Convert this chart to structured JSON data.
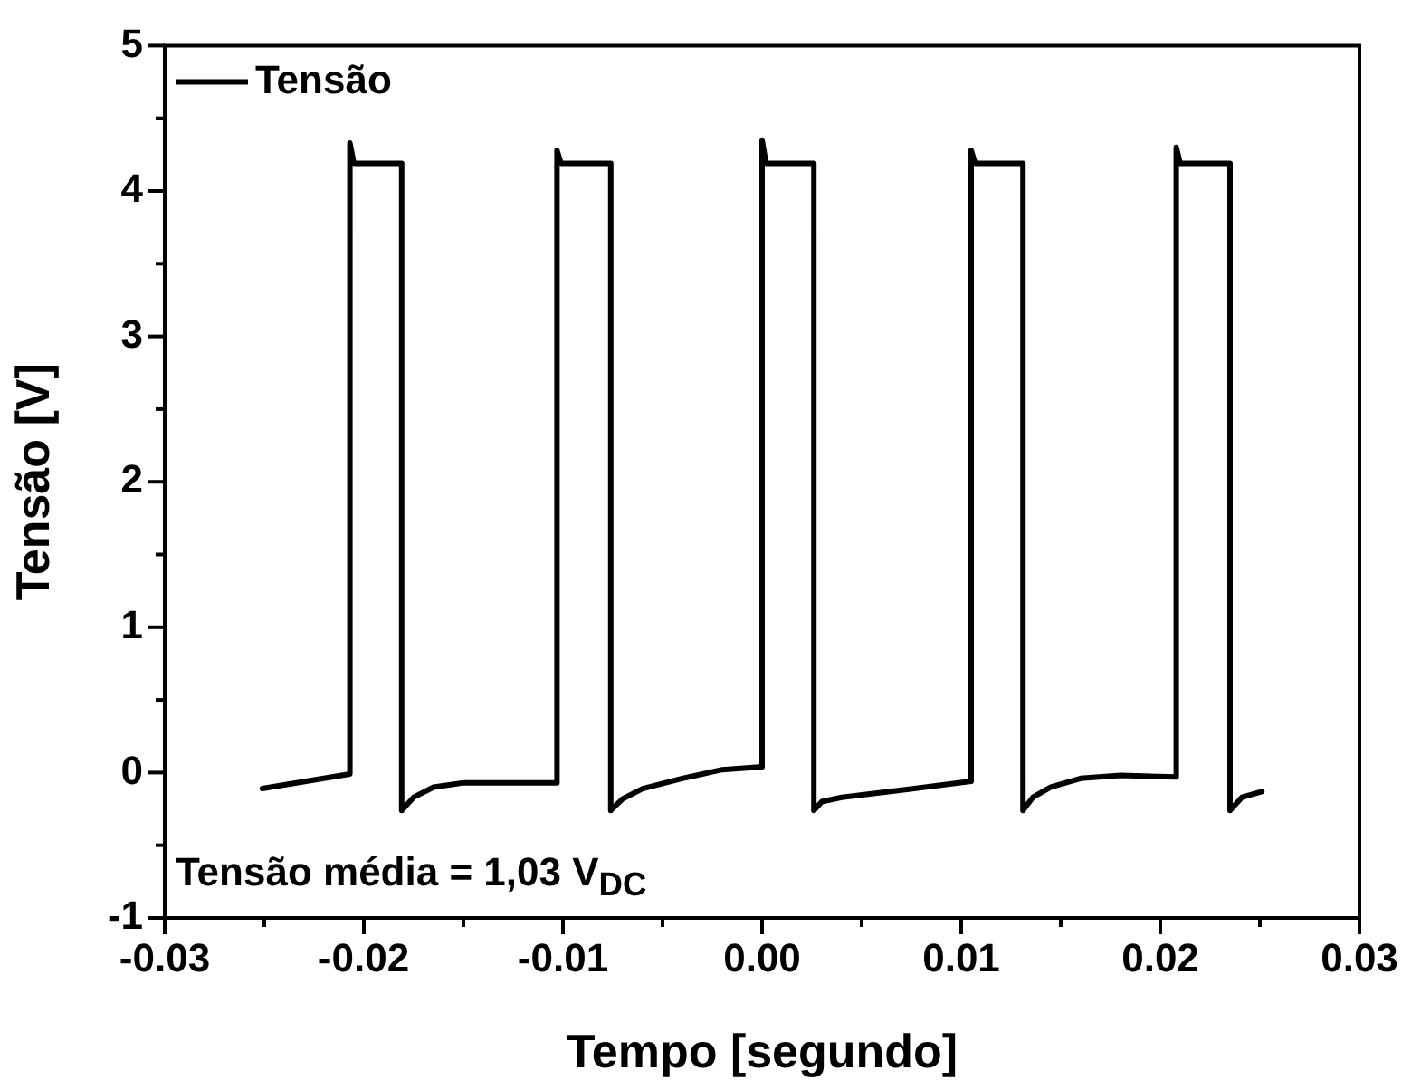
{
  "chart_data": {
    "type": "line",
    "xlabel": "Tempo [segundo]",
    "ylabel": "Tensão [V]",
    "xlim": [
      -0.03,
      0.03
    ],
    "xticks": [
      -0.03,
      {
        "value": -0.025,
        "label": null
      },
      -0.02,
      {
        "value": -0.015,
        "label": null
      },
      -0.01,
      {
        "value": -0.005,
        "label": null
      },
      {
        "value": 0,
        "label": "0.00"
      },
      {
        "value": 0.005,
        "label": null
      },
      0.01,
      {
        "value": 0.015,
        "label": null
      },
      0.02,
      {
        "value": 0.025,
        "label": null
      },
      0.03
    ],
    "ylim": [
      -1,
      5
    ],
    "yticks": [
      -1,
      {
        "value": -0.5,
        "label": null
      },
      0,
      {
        "value": 0.5,
        "label": null
      },
      1,
      {
        "value": 1.5,
        "label": null
      },
      2,
      {
        "value": 2.5,
        "label": null
      },
      3,
      {
        "value": 3.5,
        "label": null
      },
      4,
      {
        "value": 4.5,
        "label": null
      },
      5
    ],
    "grid": false,
    "legend": "top left",
    "marker": "none",
    "line_style": "solid",
    "annotations": [
      "Tensão média = 1,03 V$_{DC}$"
    ],
    "series": [
      {
        "name": "Tensão",
        "color": "#000000",
        "x": [
          -0.0251,
          -0.0207,
          -0.0207,
          -0.0205,
          -0.0181,
          -0.0181,
          -0.0175,
          -0.0165,
          -0.015,
          -0.0103,
          -0.0103,
          -0.0101,
          -0.0076,
          -0.0076,
          -0.007,
          -0.006,
          -0.004,
          -0.002,
          0.0,
          0.0,
          0.0002,
          0.0026,
          0.0026,
          0.003,
          0.004,
          0.007,
          0.0105,
          0.0105,
          0.0107,
          0.0131,
          0.0131,
          0.0136,
          0.0145,
          0.016,
          0.018,
          0.0208,
          0.0208,
          0.021,
          0.0235,
          0.0235,
          0.0241,
          0.0251
        ],
        "values": [
          -0.11,
          -0.01,
          4.33,
          4.19,
          4.19,
          -0.26,
          -0.17,
          -0.1,
          -0.07,
          -0.07,
          4.28,
          4.19,
          4.19,
          -0.26,
          -0.18,
          -0.11,
          -0.04,
          0.02,
          0.04,
          4.35,
          4.19,
          4.19,
          -0.26,
          -0.2,
          -0.17,
          -0.12,
          -0.06,
          4.28,
          4.19,
          4.19,
          -0.26,
          -0.17,
          -0.1,
          -0.04,
          -0.02,
          -0.03,
          4.3,
          4.19,
          4.19,
          -0.26,
          -0.17,
          -0.13
        ]
      }
    ]
  }
}
